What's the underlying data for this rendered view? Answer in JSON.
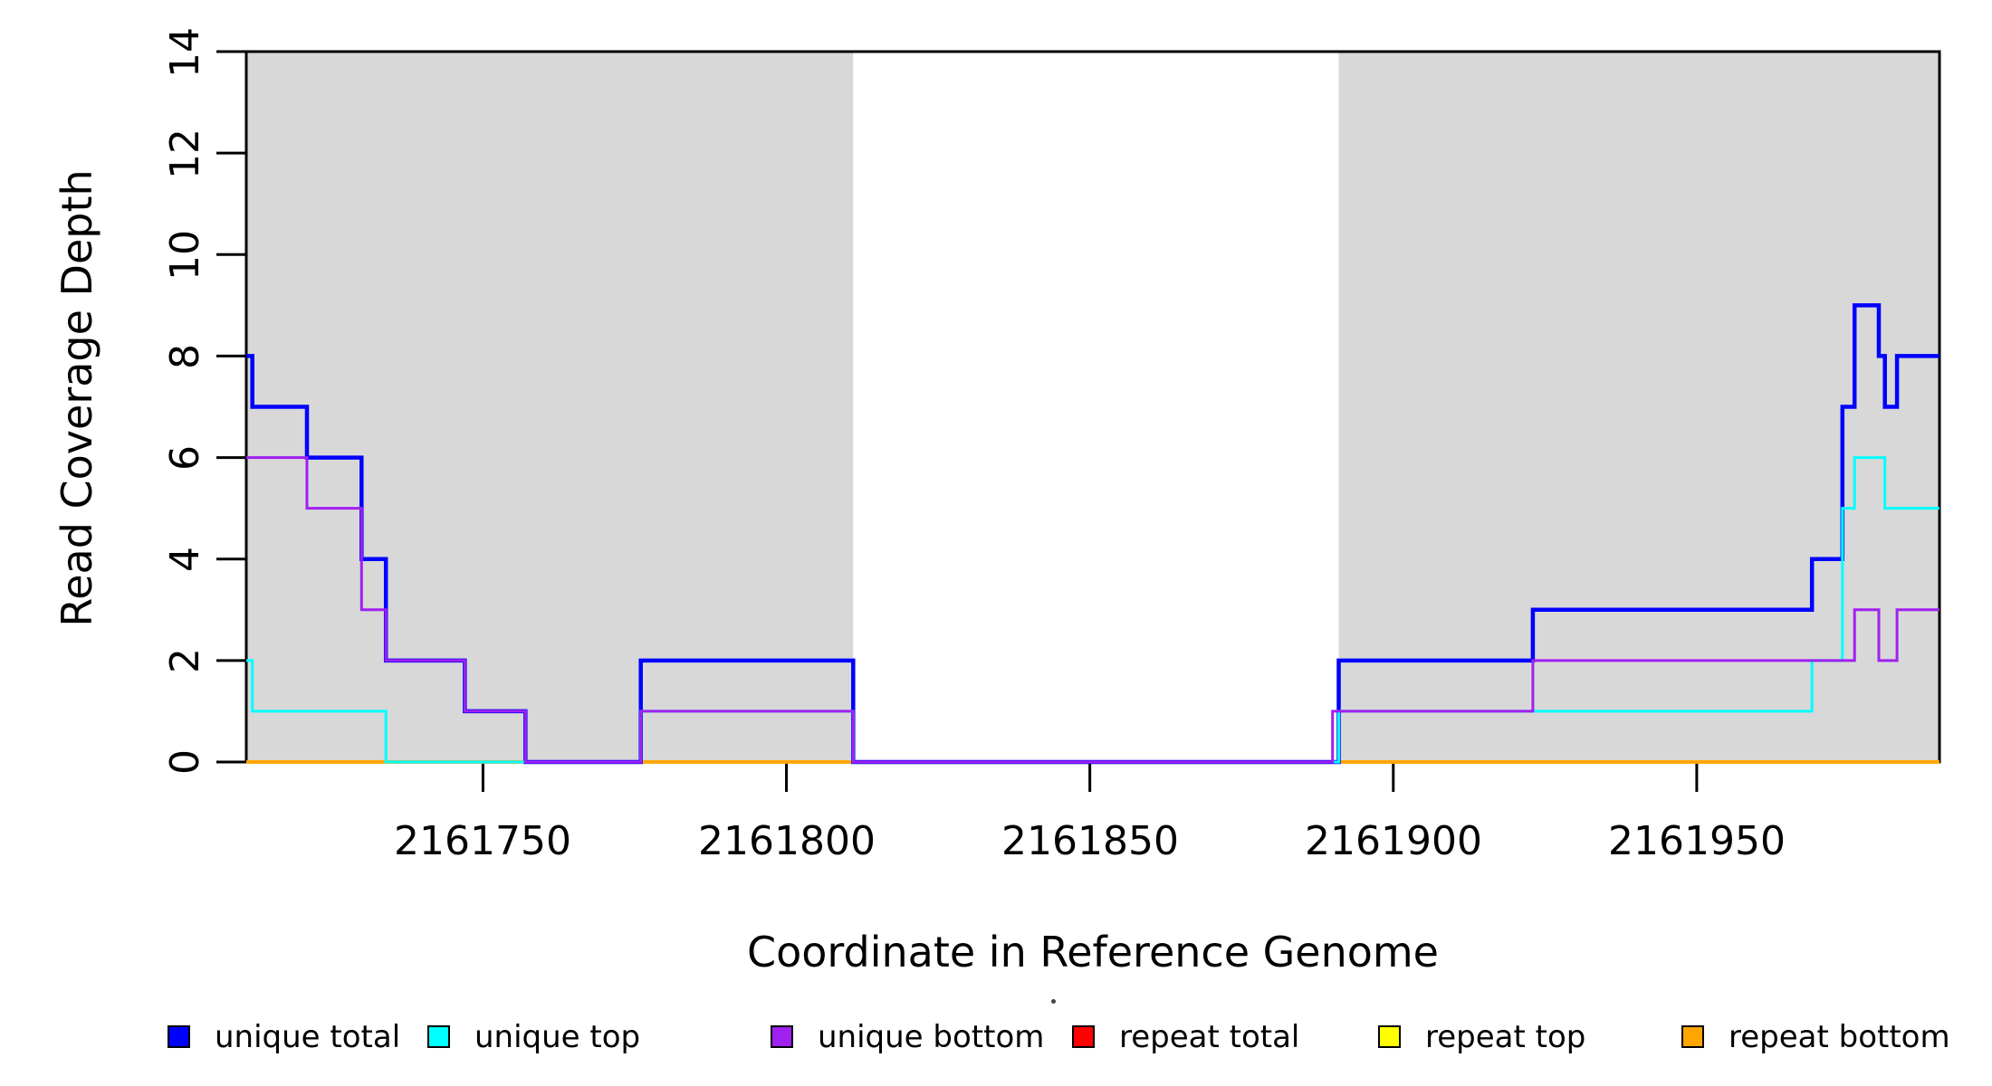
{
  "chart_data": {
    "type": "line",
    "subtype": "step-coverage",
    "title": "",
    "xlabel": "Coordinate in Reference Genome",
    "ylabel": "Read Coverage Depth",
    "xlim": [
      2161711,
      2161990
    ],
    "ylim": [
      0,
      14
    ],
    "x_ticks": [
      2161750,
      2161800,
      2161850,
      2161900,
      2161950
    ],
    "y_ticks": [
      0,
      2,
      4,
      6,
      8,
      10,
      12,
      14
    ],
    "grid": "off",
    "shaded_regions": [
      {
        "x0": 2161711,
        "x1": 2161811,
        "color": "#d8d8d8"
      },
      {
        "x0": 2161891,
        "x1": 2161990,
        "color": "#d8d8d8"
      }
    ],
    "series_draw_order": [
      {
        "name": "repeat total",
        "color": "#FF0000",
        "width": 3.5,
        "points": [
          [
            2161711,
            0
          ],
          [
            2161990,
            0
          ]
        ]
      },
      {
        "name": "repeat top",
        "color": "#FFFF00",
        "width": 3.5,
        "points": [
          [
            2161711,
            0
          ],
          [
            2161990,
            0
          ]
        ]
      },
      {
        "name": "repeat bottom",
        "color": "#FFA500",
        "width": 3.5,
        "points": [
          [
            2161711,
            0
          ],
          [
            2161990,
            0
          ]
        ]
      },
      {
        "name": "unique total",
        "color": "#0000FF",
        "width": 4.5,
        "points": [
          [
            2161711,
            8
          ],
          [
            2161712,
            7
          ],
          [
            2161721,
            6
          ],
          [
            2161730,
            4
          ],
          [
            2161734,
            2
          ],
          [
            2161747,
            1
          ],
          [
            2161757,
            0
          ],
          [
            2161776,
            2
          ],
          [
            2161811,
            0
          ],
          [
            2161891,
            2
          ],
          [
            2161923,
            3
          ],
          [
            2161969,
            4
          ],
          [
            2161974,
            7
          ],
          [
            2161976,
            9
          ],
          [
            2161980,
            8
          ],
          [
            2161981,
            7
          ],
          [
            2161983,
            8
          ],
          [
            2161990,
            8
          ]
        ]
      },
      {
        "name": "unique top",
        "color": "#00FFFF",
        "width": 3,
        "points": [
          [
            2161711,
            2
          ],
          [
            2161712,
            1
          ],
          [
            2161734,
            0
          ],
          [
            2161776,
            1
          ],
          [
            2161811,
            0
          ],
          [
            2161891,
            1
          ],
          [
            2161969,
            2
          ],
          [
            2161974,
            5
          ],
          [
            2161976,
            6
          ],
          [
            2161981,
            5
          ],
          [
            2161990,
            5
          ]
        ]
      },
      {
        "name": "unique bottom",
        "color": "#A020F0",
        "width": 3,
        "points": [
          [
            2161711,
            6
          ],
          [
            2161721,
            5
          ],
          [
            2161730,
            3
          ],
          [
            2161734,
            2
          ],
          [
            2161747,
            1
          ],
          [
            2161757,
            0
          ],
          [
            2161776,
            1
          ],
          [
            2161811,
            0
          ],
          [
            2161890,
            1
          ],
          [
            2161923,
            2
          ],
          [
            2161976,
            3
          ],
          [
            2161980,
            2
          ],
          [
            2161983,
            3
          ],
          [
            2161990,
            3
          ]
        ]
      }
    ],
    "legend": [
      {
        "label": "unique total",
        "color": "#0000FF"
      },
      {
        "label": "unique top",
        "color": "#00FFFF"
      },
      {
        "label": "unique bottom",
        "color": "#A020F0"
      },
      {
        "label": "repeat total",
        "color": "#FF0000"
      },
      {
        "label": "repeat top",
        "color": "#FFFF00"
      },
      {
        "label": "repeat bottom",
        "color": "#FFA500"
      }
    ],
    "legend_position": "bottom"
  }
}
